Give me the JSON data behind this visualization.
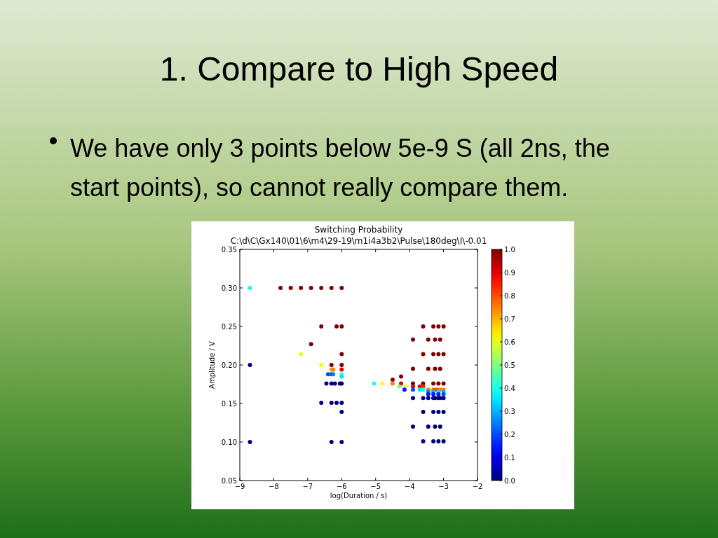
{
  "chart_data": {
    "type": "scatter",
    "title": "Switching Probability",
    "subtitle": "C:\\d\\C\\Gx140\\01\\6\\m4\\29-19\\m1i4a3b2\\Pulse\\180deg\\I\\-0.01",
    "xlabel": "log(Duration / s)",
    "ylabel": "Amplitude / V",
    "annotations": [
      "1. Compare to High Speed",
      "We have only 3 points below 5e-9 S (all 2ns, the start points), so cannot really compare them."
    ],
    "xlim": [
      -9,
      -2
    ],
    "ylim": [
      0.05,
      0.35
    ],
    "xticks": [
      {
        "value": -9,
        "label": "−9"
      },
      {
        "value": -8,
        "label": "−8"
      },
      {
        "value": -7,
        "label": "−7"
      },
      {
        "value": -6,
        "label": "−6"
      },
      {
        "value": -5,
        "label": "−5"
      },
      {
        "value": -4,
        "label": "−4"
      },
      {
        "value": -3,
        "label": "−3"
      },
      {
        "value": -2,
        "label": "−2"
      }
    ],
    "yticks": [
      {
        "value": 0.05,
        "label": "0.05"
      },
      {
        "value": 0.1,
        "label": "0.10"
      },
      {
        "value": 0.15,
        "label": "0.15"
      },
      {
        "value": 0.2,
        "label": "0.20"
      },
      {
        "value": 0.25,
        "label": "0.25"
      },
      {
        "value": 0.3,
        "label": "0.30"
      },
      {
        "value": 0.35,
        "label": "0.35"
      }
    ],
    "clim": [
      0,
      1
    ],
    "cticks": [
      {
        "value": 0,
        "label": "0.0"
      },
      {
        "value": 0.1,
        "label": "0.1"
      },
      {
        "value": 0.2,
        "label": "0.2"
      },
      {
        "value": 0.3,
        "label": "0.3"
      },
      {
        "value": 0.4,
        "label": "0.4"
      },
      {
        "value": 0.5,
        "label": "0.5"
      },
      {
        "value": 0.6,
        "label": "0.6"
      },
      {
        "value": 0.7,
        "label": "0.7"
      },
      {
        "value": 0.8,
        "label": "0.8"
      },
      {
        "value": 0.9,
        "label": "0.9"
      },
      {
        "value": 1,
        "label": "1.0"
      }
    ],
    "grid": false,
    "marker": "circle",
    "x": [
      -8.7,
      -8.7,
      -8.7,
      -7.8,
      -7.5,
      -7.2,
      -6.9,
      -6.6,
      -6.3,
      -6.0,
      -6.6,
      -6.15,
      -6.0,
      -6.9,
      -7.2,
      -6.0,
      -6.6,
      -6.3,
      -6.0,
      -6.3,
      -6.25,
      -6.0,
      -6.4,
      -6.3,
      -6.25,
      -6.0,
      -6.0,
      -6.45,
      -6.3,
      -6.2,
      -6.05,
      -6.0,
      -6.6,
      -6.3,
      -6.15,
      -6.0,
      -6.0,
      -6.3,
      -6.0,
      -3.6,
      -3.3,
      -3.15,
      -3.0,
      -3.9,
      -3.45,
      -3.25,
      -3.1,
      -3.6,
      -3.3,
      -3.15,
      -3.0,
      -3.9,
      -3.45,
      -3.25,
      -3.1,
      -4.25,
      -4.5,
      -5.05,
      -4.8,
      -4.5,
      -4.25,
      -3.9,
      -3.6,
      -3.3,
      -3.15,
      -3.0,
      -4.3,
      -4.1,
      -3.9,
      -3.7,
      -3.6,
      -4.15,
      -3.9,
      -3.7,
      -3.6,
      -3.45,
      -3.3,
      -3.2,
      -3.1,
      -3.0,
      -3.45,
      -3.3,
      -3.15,
      -3.0,
      -3.45,
      -3.3,
      -3.15,
      -3.0,
      -3.9,
      -3.6,
      -3.45,
      -3.3,
      -3.25,
      -3.15,
      -3.1,
      -3.0,
      -3.6,
      -3.3,
      -3.15,
      -3.0,
      -3.9,
      -3.45,
      -3.25,
      -3.1,
      -3.6,
      -3.3,
      -3.15,
      -3.0
    ],
    "values": [
      0.3,
      0.2,
      0.1,
      0.3,
      0.3,
      0.3,
      0.3,
      0.3,
      0.3,
      0.3,
      0.25,
      0.25,
      0.25,
      0.227,
      0.214,
      0.214,
      0.2,
      0.2,
      0.2,
      0.194,
      0.194,
      0.194,
      0.188,
      0.188,
      0.188,
      0.188,
      0.185,
      0.176,
      0.176,
      0.176,
      0.176,
      0.176,
      0.151,
      0.151,
      0.151,
      0.151,
      0.139,
      0.1,
      0.1,
      0.25,
      0.25,
      0.25,
      0.25,
      0.233,
      0.233,
      0.233,
      0.233,
      0.214,
      0.214,
      0.214,
      0.214,
      0.195,
      0.195,
      0.195,
      0.195,
      0.185,
      0.181,
      0.176,
      0.176,
      0.176,
      0.176,
      0.176,
      0.176,
      0.176,
      0.176,
      0.176,
      0.172,
      0.172,
      0.172,
      0.172,
      0.172,
      0.168,
      0.168,
      0.168,
      0.168,
      0.168,
      0.168,
      0.168,
      0.168,
      0.168,
      0.165,
      0.165,
      0.165,
      0.165,
      0.162,
      0.162,
      0.162,
      0.162,
      0.157,
      0.157,
      0.157,
      0.157,
      0.157,
      0.157,
      0.157,
      0.157,
      0.139,
      0.139,
      0.139,
      0.139,
      0.12,
      0.12,
      0.12,
      0.12,
      0.101,
      0.101,
      0.101,
      0.101
    ],
    "cvalues": [
      0.38,
      0,
      0,
      1,
      1,
      1,
      1,
      1,
      1,
      1,
      1,
      1,
      1,
      1,
      0.6,
      1,
      0.62,
      1,
      1,
      0.72,
      0.75,
      0.9,
      0.2,
      0.2,
      0.25,
      0.45,
      0.35,
      0,
      0,
      0,
      0,
      0,
      0,
      0,
      0,
      0,
      0,
      0,
      0,
      1,
      1,
      1,
      1,
      1,
      1,
      1,
      1,
      1,
      1,
      1,
      1,
      1,
      1,
      1,
      1,
      1,
      1,
      0.4,
      0.62,
      0.75,
      0.9,
      1,
      1,
      1,
      1,
      1,
      0.5,
      0.62,
      0.9,
      0.9,
      0.85,
      0.15,
      0.2,
      0.35,
      0.4,
      0.75,
      0.78,
      0.8,
      0.75,
      0.75,
      0.25,
      0.3,
      0.35,
      0.3,
      0.15,
      0.15,
      0.15,
      0.2,
      0,
      0,
      0,
      0,
      0,
      0,
      0,
      0,
      0,
      0,
      0,
      0,
      0,
      0,
      0,
      0,
      0,
      0,
      0,
      0
    ]
  }
}
